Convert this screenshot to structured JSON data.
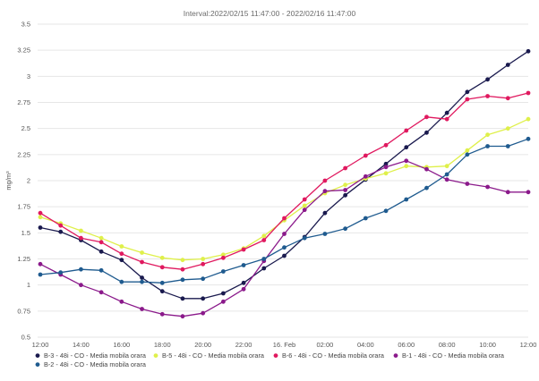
{
  "chart_data": {
    "type": "line",
    "title": "Interval:2022/02/15 11:47:00 - 2022/02/16 11:47:00",
    "ylabel": "mg/m³",
    "xlabel": "",
    "ylim": [
      0.5,
      3.5
    ],
    "yticks": [
      0.5,
      0.75,
      1,
      1.25,
      1.5,
      1.75,
      2,
      2.25,
      2.5,
      2.75,
      3,
      3.25,
      3.5
    ],
    "ytick_labels": [
      "0.5",
      "0.75",
      "1",
      "1.25",
      "1.5",
      "1.75",
      "2",
      "2.25",
      "2.5",
      "2.75",
      "3",
      "3.25",
      "3.5"
    ],
    "xticks": [
      0,
      2,
      4,
      6,
      8,
      10,
      12,
      14,
      16,
      18,
      20,
      22,
      24
    ],
    "xtick_labels": [
      "12:00",
      "14:00",
      "16:00",
      "18:00",
      "20:00",
      "22:00",
      "16. Feb",
      "02:00",
      "04:00",
      "06:00",
      "08:00",
      "10:00",
      "12:00"
    ],
    "xlim": [
      0,
      24
    ],
    "grid": true,
    "legend_position": "bottom",
    "x": [
      0,
      1,
      2,
      3,
      4,
      5,
      6,
      7,
      8,
      9,
      10,
      11,
      12,
      13,
      14,
      15,
      16,
      17,
      18,
      19,
      20,
      21,
      22,
      23,
      24
    ],
    "series": [
      {
        "name": "B-3 - 48i - CO - Media mobila orara",
        "color": "#1a1a4e",
        "values": [
          1.55,
          1.51,
          1.43,
          1.32,
          1.24,
          1.07,
          0.94,
          0.87,
          0.87,
          0.92,
          1.02,
          1.16,
          1.28,
          1.46,
          1.69,
          1.86,
          2.01,
          2.16,
          2.32,
          2.46,
          2.65,
          2.85,
          2.97,
          3.11,
          3.24
        ]
      },
      {
        "name": "B-5 - 48i - CO - Media mobila orara",
        "color": "#dff04a",
        "values": [
          1.65,
          1.59,
          1.52,
          1.45,
          1.37,
          1.31,
          1.26,
          1.24,
          1.25,
          1.29,
          1.35,
          1.47,
          1.62,
          1.76,
          1.88,
          1.96,
          2.02,
          2.07,
          2.14,
          2.13,
          2.14,
          2.29,
          2.44,
          2.5,
          2.59
        ]
      },
      {
        "name": "B-6 - 48i - CO - Media mobila orara",
        "color": "#e0195f",
        "values": [
          1.69,
          1.57,
          1.45,
          1.41,
          1.3,
          1.22,
          1.17,
          1.15,
          1.2,
          1.26,
          1.34,
          1.43,
          1.64,
          1.82,
          2.0,
          2.12,
          2.24,
          2.34,
          2.48,
          2.61,
          2.59,
          2.78,
          2.81,
          2.79,
          2.84
        ]
      },
      {
        "name": "B-1 - 48i - CO - Media mobila orara",
        "color": "#8b1a8b",
        "values": [
          1.2,
          1.1,
          1.0,
          0.93,
          0.84,
          0.77,
          0.72,
          0.7,
          0.73,
          0.84,
          0.96,
          1.23,
          1.49,
          1.72,
          1.9,
          1.91,
          2.04,
          2.13,
          2.19,
          2.11,
          2.01,
          1.97,
          1.94,
          1.89,
          1.89
        ]
      },
      {
        "name": "B-2 - 48i - CO - Media mobila orara",
        "color": "#1f5b8f",
        "values": [
          1.1,
          1.12,
          1.15,
          1.14,
          1.03,
          1.03,
          1.02,
          1.05,
          1.06,
          1.13,
          1.19,
          1.25,
          1.36,
          1.45,
          1.49,
          1.54,
          1.64,
          1.71,
          1.82,
          1.93,
          2.06,
          2.25,
          2.33,
          2.33,
          2.4
        ]
      }
    ]
  }
}
